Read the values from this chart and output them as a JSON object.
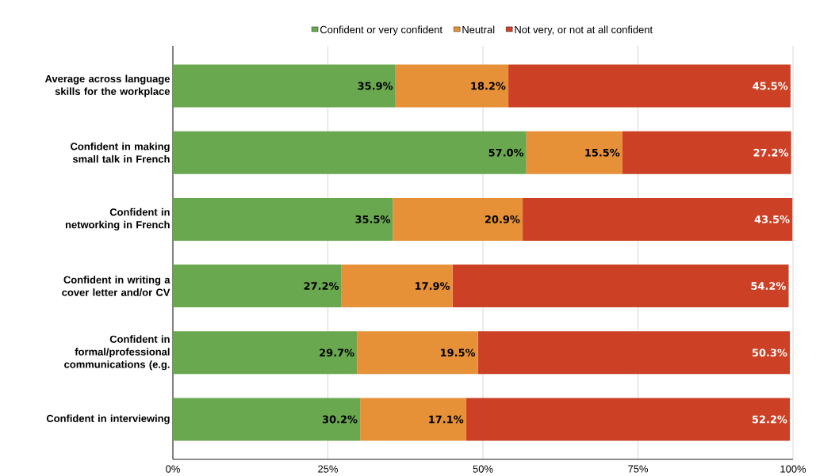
{
  "chart_data": {
    "type": "bar",
    "orientation": "horizontal",
    "stacked": true,
    "categories": [
      "Average across language skills for the workplace",
      "Confident in making small talk in French",
      "Confident in networking in French",
      "Confident in writing a cover letter and/or CV",
      "Confident in formal/professional communications (e.g.",
      "Confident in interviewing"
    ],
    "series": [
      {
        "name": "Confident or very confident",
        "color": "#6aa84f",
        "values": [
          35.9,
          57.0,
          35.5,
          27.2,
          29.7,
          30.2
        ],
        "value_labels": [
          "35.9%",
          "57.0%",
          "35.5%",
          "27.2%",
          "29.7%",
          "30.2%"
        ]
      },
      {
        "name": "Neutral",
        "color": "#e69138",
        "values": [
          18.2,
          15.5,
          20.9,
          17.9,
          19.5,
          17.1
        ],
        "value_labels": [
          "18.2%",
          "15.5%",
          "20.9%",
          "17.9%",
          "19.5%",
          "17.1%"
        ]
      },
      {
        "name": "Not very, or not at all confident",
        "color": "#cc4125",
        "values": [
          45.5,
          27.2,
          43.5,
          54.2,
          50.3,
          52.2
        ],
        "value_labels": [
          "45.5%",
          "27.2%",
          "43.5%",
          "54.2%",
          "50.3%",
          "52.2%"
        ]
      }
    ],
    "xlim": [
      0,
      100
    ],
    "xticks": [
      {
        "value": 0,
        "label": "0%"
      },
      {
        "value": 25,
        "label": "25%"
      },
      {
        "value": 50,
        "label": "50%"
      },
      {
        "value": 75,
        "label": "75%"
      },
      {
        "value": 100,
        "label": "100%"
      }
    ],
    "grid": "x",
    "legend": "top"
  }
}
